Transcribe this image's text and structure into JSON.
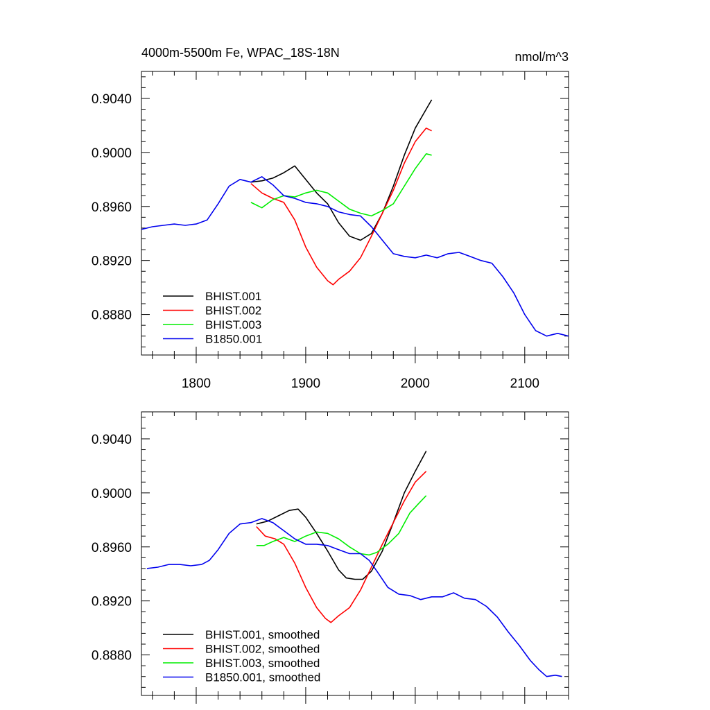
{
  "title": "4000m-5500m Fe, WPAC_18S-18N",
  "units": "nmol/m^3",
  "colors": {
    "BHIST.001": "#000000",
    "BHIST.002": "#ff0000",
    "BHIST.003": "#00ee00",
    "B1850.001": "#0000ee"
  },
  "chart_data": [
    {
      "type": "line",
      "panel": "top",
      "title": "4000m-5500m Fe, WPAC_18S-18N",
      "units_label": "nmol/m^3",
      "xlim": [
        1750,
        2140
      ],
      "ylim": [
        0.885,
        0.906
      ],
      "x_ticks": [
        1800,
        1900,
        2000,
        2100
      ],
      "x_tick_labels": [
        "1800",
        "1900",
        "2000",
        "2100"
      ],
      "y_ticks": [
        0.888,
        0.892,
        0.896,
        0.9,
        0.904
      ],
      "y_tick_labels": [
        "0.8880",
        "0.8920",
        "0.8960",
        "0.9000",
        "0.9040"
      ],
      "legend": "bottom-left",
      "series": [
        {
          "name": "BHIST.001",
          "color": "#000000",
          "x": [
            1850,
            1860,
            1870,
            1880,
            1890,
            1900,
            1910,
            1920,
            1930,
            1940,
            1950,
            1960,
            1970,
            1980,
            1990,
            2000,
            2010,
            2015
          ],
          "y": [
            0.8978,
            0.8979,
            0.8981,
            0.8985,
            0.899,
            0.898,
            0.897,
            0.8962,
            0.8948,
            0.8938,
            0.8935,
            0.894,
            0.8955,
            0.8975,
            0.8998,
            0.9018,
            0.9032,
            0.9039
          ]
        },
        {
          "name": "BHIST.002",
          "color": "#ff0000",
          "x": [
            1850,
            1860,
            1870,
            1880,
            1890,
            1900,
            1910,
            1920,
            1925,
            1930,
            1940,
            1950,
            1960,
            1970,
            1980,
            1990,
            2000,
            2010,
            2015
          ],
          "y": [
            0.8977,
            0.897,
            0.8966,
            0.8963,
            0.895,
            0.893,
            0.8915,
            0.8905,
            0.8902,
            0.8906,
            0.8912,
            0.8922,
            0.8938,
            0.8955,
            0.8972,
            0.8992,
            0.9008,
            0.9018,
            0.9016
          ]
        },
        {
          "name": "BHIST.003",
          "color": "#00ee00",
          "x": [
            1850,
            1860,
            1870,
            1880,
            1890,
            1900,
            1910,
            1920,
            1930,
            1940,
            1950,
            1960,
            1970,
            1980,
            1990,
            2000,
            2010,
            2015
          ],
          "y": [
            0.8963,
            0.8959,
            0.8965,
            0.8968,
            0.8967,
            0.897,
            0.8972,
            0.897,
            0.8964,
            0.8958,
            0.8955,
            0.8953,
            0.8957,
            0.8962,
            0.8975,
            0.8988,
            0.8999,
            0.8998
          ]
        },
        {
          "name": "B1850.001",
          "color": "#0000ee",
          "x": [
            1750,
            1760,
            1770,
            1780,
            1790,
            1800,
            1810,
            1820,
            1830,
            1840,
            1850,
            1860,
            1870,
            1880,
            1890,
            1900,
            1910,
            1920,
            1930,
            1940,
            1950,
            1960,
            1970,
            1980,
            1990,
            2000,
            2010,
            2020,
            2030,
            2040,
            2050,
            2060,
            2070,
            2080,
            2090,
            2100,
            2110,
            2120,
            2130,
            2140
          ],
          "y": [
            0.8943,
            0.8945,
            0.8946,
            0.8947,
            0.8946,
            0.8947,
            0.895,
            0.8962,
            0.8975,
            0.898,
            0.8978,
            0.8982,
            0.8976,
            0.8968,
            0.8966,
            0.8963,
            0.8962,
            0.896,
            0.8956,
            0.8954,
            0.8953,
            0.8945,
            0.8935,
            0.8925,
            0.8923,
            0.8922,
            0.8924,
            0.8922,
            0.8925,
            0.8926,
            0.8923,
            0.892,
            0.8918,
            0.8908,
            0.8896,
            0.888,
            0.8868,
            0.8864,
            0.8866,
            0.8864
          ]
        }
      ]
    },
    {
      "type": "line",
      "panel": "bottom",
      "xlim": [
        1750,
        2140
      ],
      "ylim": [
        0.885,
        0.906
      ],
      "x_ticks": [
        1800,
        1900,
        2000,
        2100
      ],
      "y_ticks": [
        0.888,
        0.892,
        0.896,
        0.9,
        0.904
      ],
      "y_tick_labels": [
        "0.8880",
        "0.8920",
        "0.8960",
        "0.9000",
        "0.9040"
      ],
      "legend": "bottom-left",
      "series": [
        {
          "name": "BHIST.001, smoothed",
          "color": "#000000",
          "x": [
            1855,
            1865,
            1875,
            1885,
            1893,
            1900,
            1910,
            1920,
            1930,
            1937,
            1945,
            1952,
            1960,
            1970,
            1980,
            1990,
            2000,
            2010
          ],
          "y": [
            0.8977,
            0.8979,
            0.8983,
            0.8987,
            0.8988,
            0.8982,
            0.897,
            0.8957,
            0.8943,
            0.8937,
            0.8936,
            0.8936,
            0.8942,
            0.8957,
            0.8978,
            0.9,
            0.9016,
            0.9031
          ]
        },
        {
          "name": "BHIST.002, smoothed",
          "color": "#ff0000",
          "x": [
            1855,
            1863,
            1872,
            1880,
            1890,
            1900,
            1910,
            1918,
            1923,
            1930,
            1940,
            1950,
            1960,
            1970,
            1980,
            1990,
            2000,
            2010
          ],
          "y": [
            0.8975,
            0.8968,
            0.8966,
            0.8962,
            0.8948,
            0.893,
            0.8915,
            0.8907,
            0.8904,
            0.8909,
            0.8915,
            0.8928,
            0.8945,
            0.8962,
            0.8978,
            0.8994,
            0.9008,
            0.9016
          ]
        },
        {
          "name": "BHIST.003, smoothed",
          "color": "#00ee00",
          "x": [
            1855,
            1862,
            1870,
            1880,
            1890,
            1900,
            1910,
            1920,
            1930,
            1940,
            1950,
            1958,
            1965,
            1975,
            1985,
            1995,
            2003,
            2010
          ],
          "y": [
            0.8961,
            0.8961,
            0.8964,
            0.8967,
            0.8964,
            0.8968,
            0.8971,
            0.897,
            0.8966,
            0.896,
            0.8955,
            0.8954,
            0.8956,
            0.8962,
            0.897,
            0.8985,
            0.8992,
            0.8998
          ]
        },
        {
          "name": "B1850.001, smoothed",
          "color": "#0000ee",
          "x": [
            1755,
            1765,
            1775,
            1785,
            1795,
            1805,
            1812,
            1820,
            1830,
            1840,
            1850,
            1860,
            1870,
            1880,
            1890,
            1900,
            1910,
            1920,
            1930,
            1940,
            1950,
            1958,
            1965,
            1975,
            1985,
            1995,
            2005,
            2015,
            2025,
            2035,
            2045,
            2055,
            2065,
            2075,
            2085,
            2095,
            2105,
            2113,
            2120,
            2128,
            2134
          ],
          "y": [
            0.8944,
            0.8945,
            0.8947,
            0.8947,
            0.8946,
            0.8947,
            0.895,
            0.8958,
            0.897,
            0.8977,
            0.8978,
            0.8981,
            0.8978,
            0.8972,
            0.8966,
            0.8962,
            0.8962,
            0.8961,
            0.8958,
            0.8955,
            0.8955,
            0.895,
            0.8942,
            0.893,
            0.8925,
            0.8924,
            0.8921,
            0.8923,
            0.8923,
            0.8926,
            0.8922,
            0.8921,
            0.8916,
            0.8908,
            0.8897,
            0.8887,
            0.8876,
            0.8869,
            0.8864,
            0.8865,
            0.8864
          ]
        }
      ]
    }
  ]
}
